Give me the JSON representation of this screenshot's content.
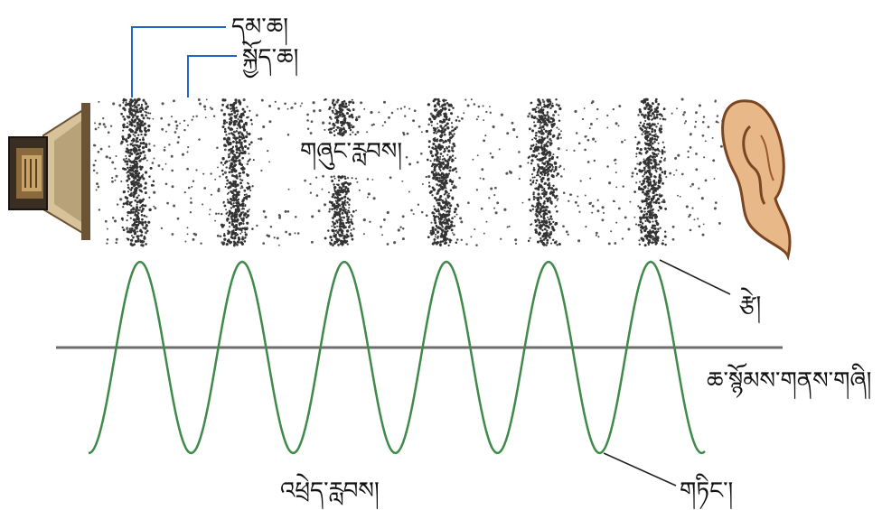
{
  "labels": {
    "compression": "དམ་ཆ།",
    "rarefaction": "སྐྱོད་ཆ།",
    "longitudinal_wave": "གཞུང་རླབས།",
    "crest": "རྩེ།",
    "equilibrium": "ཆ་སྙོམས་གནས་གཞི།",
    "transverse_wave": "འཕྲེད་རླབས།",
    "trough": "གཏིང་།"
  },
  "colors": {
    "wave": "#3f8a4a",
    "axis": "#6d6d6d",
    "leader_blue": "#2266cc",
    "leader_black": "#222222",
    "particles": "#444444",
    "speaker_metal": "#b8a27a",
    "speaker_dark": "#3a2e22",
    "ear_skin": "#e8b889",
    "ear_outline": "#7a4520"
  },
  "icons": {
    "speaker": "loudspeaker-icon",
    "ear": "human-ear-icon"
  }
}
